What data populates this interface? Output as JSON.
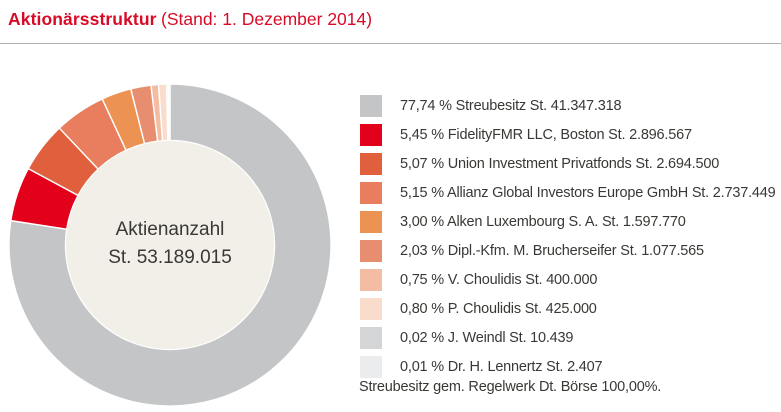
{
  "header": {
    "title": "Aktionärsstruktur",
    "subtitle": "(Stand: 1. Dezember 2014)",
    "accent_color": "#d80b26"
  },
  "chart_data": {
    "type": "pie",
    "donut": true,
    "legend_position": "right",
    "start_angle_deg": -90,
    "direction": "clockwise",
    "hole_color": "#f2efe8",
    "separator_color": "#ffffff",
    "center_label": {
      "line1": "Aktienanzahl",
      "line2": "St. 53.189.015"
    },
    "series": [
      {
        "label": "Streubesitz",
        "percent": 77.74,
        "shares": "41.347.318",
        "color": "#c3c5c7",
        "legend": "77,74 % Streubesitz St. 41.347.318"
      },
      {
        "label": "FidelityFMR LLC, Boston",
        "percent": 5.45,
        "shares": "2.896.567",
        "color": "#e3001b",
        "legend": "5,45 % FidelityFMR LLC, Boston St. 2.896.567"
      },
      {
        "label": "Union Investment Privatfonds",
        "percent": 5.07,
        "shares": "2.694.500",
        "color": "#e0603d",
        "legend": "5,07 % Union Investment Privatfonds St. 2.694.500"
      },
      {
        "label": "Allianz Global Investors Europe GmbH",
        "percent": 5.15,
        "shares": "2.737.449",
        "color": "#e87e5e",
        "legend": "5,15 % Allianz Global Investors Europe GmbH St. 2.737.449"
      },
      {
        "label": "Alken Luxembourg S. A.",
        "percent": 3.0,
        "shares": "1.597.770",
        "color": "#ec9354",
        "legend": "3,00 % Alken Luxembourg S. A. St. 1.597.770"
      },
      {
        "label": "Dipl.-Kfm. M. Brucherseifer",
        "percent": 2.03,
        "shares": "1.077.565",
        "color": "#e78e70",
        "legend": "2,03 % Dipl.-Kfm. M. Brucherseifer St. 1.077.565"
      },
      {
        "label": "V. Choulidis",
        "percent": 0.75,
        "shares": "400.000",
        "color": "#f3bda4",
        "legend": "0,75 % V. Choulidis St. 400.000"
      },
      {
        "label": "P. Choulidis",
        "percent": 0.8,
        "shares": "425.000",
        "color": "#f9dccb",
        "legend": "0,80 % P. Choulidis St. 425.000"
      },
      {
        "label": "J. Weindl",
        "percent": 0.02,
        "shares": "10.439",
        "color": "#d3d5d7",
        "legend": "0,02 % J. Weindl St. 10.439"
      },
      {
        "label": "Dr. H. Lennertz",
        "percent": 0.01,
        "shares": "2.407",
        "color": "#eaecee",
        "legend": "0,01 % Dr. H. Lennertz St. 2.407"
      }
    ],
    "footnote": "Streubesitz gem. Regelwerk Dt. Börse 100,00%."
  }
}
